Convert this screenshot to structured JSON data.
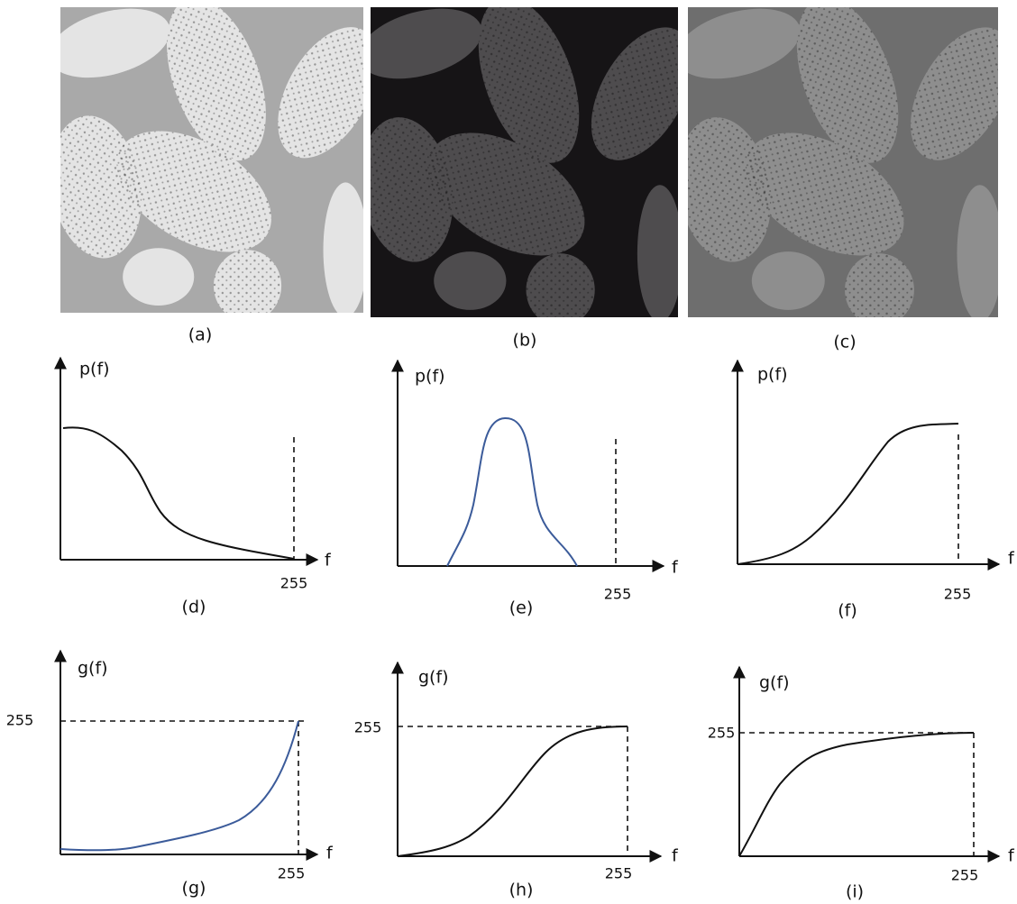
{
  "images": [
    {
      "caption": "(a)"
    },
    {
      "caption": "(b)"
    },
    {
      "caption": "(c)"
    }
  ],
  "histograms": [
    {
      "caption": "(d)",
      "y_label": "p(f)",
      "x_label": "f",
      "x_end_label": "255"
    },
    {
      "caption": "(e)",
      "y_label": "p(f)",
      "x_label": "f",
      "x_end_label": "255"
    },
    {
      "caption": "(f)",
      "y_label": "p(f)",
      "x_label": "f",
      "x_end_label": "255"
    }
  ],
  "transforms": [
    {
      "caption": "(g)",
      "y_label": "g(f)",
      "x_label": "f",
      "x_end_label": "255",
      "y_end_label": "255"
    },
    {
      "caption": "(h)",
      "y_label": "g(f)",
      "x_label": "f",
      "x_end_label": "255",
      "y_end_label": "255"
    },
    {
      "caption": "(i)",
      "y_label": "g(f)",
      "x_label": "f",
      "x_end_label": "255",
      "y_end_label": "255"
    }
  ]
}
